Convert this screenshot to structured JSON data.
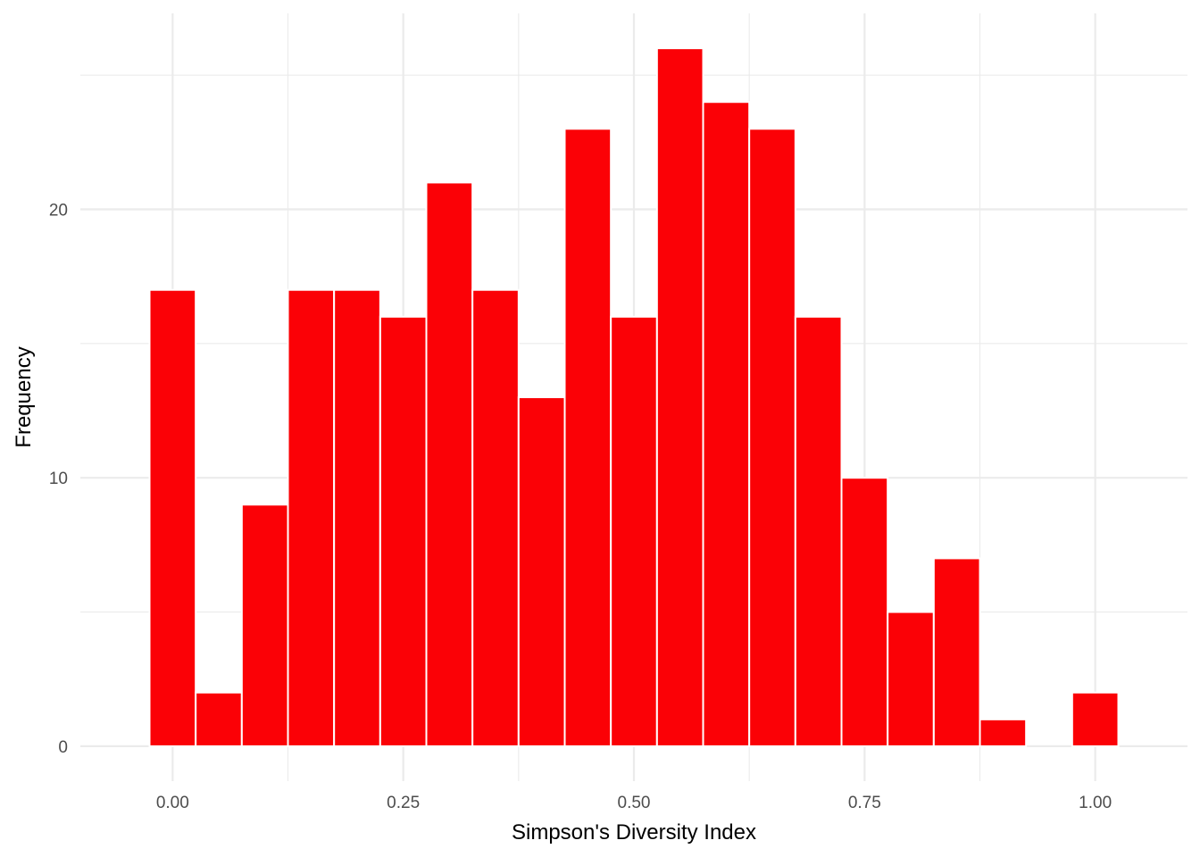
{
  "chart_data": {
    "type": "bar",
    "title": "",
    "xlabel": "Simpson's Diversity Index",
    "ylabel": "Frequency",
    "bin_width": 0.05,
    "x": [
      0.0,
      0.05,
      0.1,
      0.15,
      0.2,
      0.25,
      0.3,
      0.35,
      0.4,
      0.45,
      0.5,
      0.55,
      0.6,
      0.65,
      0.7,
      0.75,
      0.8,
      0.85,
      0.9,
      0.95,
      1.0
    ],
    "values": [
      17,
      2,
      9,
      17,
      17,
      16,
      21,
      17,
      13,
      23,
      16,
      26,
      24,
      23,
      16,
      10,
      5,
      7,
      1,
      0,
      2
    ],
    "xlim": [
      -0.1,
      1.1
    ],
    "ylim": [
      -1.3,
      27.3
    ],
    "x_ticks": [
      0.0,
      0.25,
      0.5,
      0.75,
      1.0
    ],
    "x_tick_labels": [
      "0.00",
      "0.25",
      "0.50",
      "0.75",
      "1.00"
    ],
    "y_ticks": [
      0,
      10,
      20
    ],
    "y_tick_labels": [
      "0",
      "10",
      "20"
    ],
    "bar_color": "#fb0106",
    "bar_border_color": "#ffffff",
    "grid": true,
    "grid_color": "#ebebeb",
    "legend": "none"
  }
}
